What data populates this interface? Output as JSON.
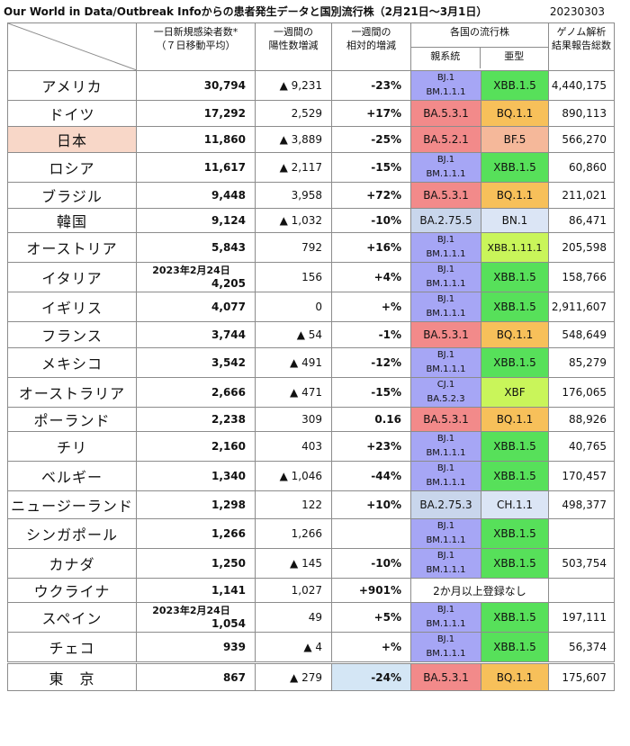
{
  "title": "Our World in Data/Outbreak Infoからの患者発生データと国別流行株（2月21日～3月1日）",
  "date_code": "20230303",
  "headers": {
    "new_cases": [
      "一日新規感染者数*",
      "（７日移動平均）"
    ],
    "weekly_change": [
      "一週間の",
      "陽性数増減"
    ],
    "relative_change": [
      "一週間の",
      "相対的増減"
    ],
    "strains": "各国の流行株",
    "parent_lineage": "親系統",
    "sub_type": "亜型",
    "genome": [
      "ゲノム解析",
      "結果報告総数"
    ]
  },
  "rows": [
    {
      "country": "アメリカ",
      "cases": "30,794",
      "change": "▲ 9,231",
      "rel": "-23%",
      "parent": [
        "BJ.1",
        "BM.1.1.1"
      ],
      "parent_color": "#a6a6f5",
      "sub": "XBB.1.5",
      "sub_color": "#57e05a",
      "genome": "4,440,175"
    },
    {
      "country": "ドイツ",
      "cases": "17,292",
      "change": "2,529",
      "rel": "+17%",
      "parent": [
        "BA.5.3.1"
      ],
      "parent_color": "#f28a8a",
      "sub": "BQ.1.1",
      "sub_color": "#f7c05a",
      "genome": "890,113"
    },
    {
      "country": "日本",
      "cases": "11,860",
      "change": "▲ 3,889",
      "rel": "-25%",
      "parent": [
        "BA.5.2.1"
      ],
      "parent_color": "#f28a8a",
      "sub": "BF.5",
      "sub_color": "#f5b89a",
      "genome": "566,270"
    },
    {
      "country": "ロシア",
      "cases": "11,617",
      "change": "▲ 2,117",
      "rel": "-15%",
      "parent": [
        "BJ.1",
        "BM.1.1.1"
      ],
      "parent_color": "#a6a6f5",
      "sub": "XBB.1.5",
      "sub_color": "#57e05a",
      "genome": "60,860"
    },
    {
      "country": "ブラジル",
      "cases": "9,448",
      "change": "3,958",
      "rel": "+72%",
      "parent": [
        "BA.5.3.1"
      ],
      "parent_color": "#f28a8a",
      "sub": "BQ.1.1",
      "sub_color": "#f7c05a",
      "genome": "211,021"
    },
    {
      "country": "韓国",
      "cases": "9,124",
      "change": "▲ 1,032",
      "rel": "-10%",
      "parent": [
        "BA.2.75.5"
      ],
      "parent_color": "#c9d6ec",
      "sub": "BN.1",
      "sub_color": "#dbe5f5",
      "genome": "86,471"
    },
    {
      "country": "オーストリア",
      "cases": "5,843",
      "change": "792",
      "rel": "+16%",
      "parent": [
        "BJ.1",
        "BM.1.1.1"
      ],
      "parent_color": "#a6a6f5",
      "sub": "XBB.1.11.1",
      "sub_color": "#c9f55a",
      "genome": "205,598"
    },
    {
      "country": "イタリア",
      "cases": "4,205",
      "cases_note": "2023年2月24日",
      "change": "156",
      "rel": "+4%",
      "parent": [
        "BJ.1",
        "BM.1.1.1"
      ],
      "parent_color": "#a6a6f5",
      "sub": "XBB.1.5",
      "sub_color": "#57e05a",
      "genome": "158,766"
    },
    {
      "country": "イギリス",
      "cases": "4,077",
      "change": "0",
      "rel": "+%",
      "parent": [
        "BJ.1",
        "BM.1.1.1"
      ],
      "parent_color": "#a6a6f5",
      "sub": "XBB.1.5",
      "sub_color": "#57e05a",
      "genome": "2,911,607"
    },
    {
      "country": "フランス",
      "cases": "3,744",
      "change": "▲ 54",
      "rel": "-1%",
      "parent": [
        "BA.5.3.1"
      ],
      "parent_color": "#f28a8a",
      "sub": "BQ.1.1",
      "sub_color": "#f7c05a",
      "genome": "548,649"
    },
    {
      "country": "メキシコ",
      "cases": "3,542",
      "change": "▲ 491",
      "rel": "-12%",
      "parent": [
        "BJ.1",
        "BM.1.1.1"
      ],
      "parent_color": "#a6a6f5",
      "sub": "XBB.1.5",
      "sub_color": "#57e05a",
      "genome": "85,279"
    },
    {
      "country": "オーストラリア",
      "cases": "2,666",
      "change": "▲ 471",
      "rel": "-15%",
      "parent": [
        "CJ.1",
        "BA.5.2.3"
      ],
      "parent_color": "#a6a6f5",
      "sub": "XBF",
      "sub_color": "#c9f55a",
      "genome": "176,065"
    },
    {
      "country": "ポーランド",
      "cases": "2,238",
      "change": "309",
      "rel": "0.16",
      "parent": [
        "BA.5.3.1"
      ],
      "parent_color": "#f28a8a",
      "sub": "BQ.1.1",
      "sub_color": "#f7c05a",
      "genome": "88,926"
    },
    {
      "country": "チリ",
      "cases": "2,160",
      "change": "403",
      "rel": "+23%",
      "parent": [
        "BJ.1",
        "BM.1.1.1"
      ],
      "parent_color": "#a6a6f5",
      "sub": "XBB.1.5",
      "sub_color": "#57e05a",
      "genome": "40,765"
    },
    {
      "country": "ベルギー",
      "cases": "1,340",
      "change": "▲ 1,046",
      "rel": "-44%",
      "parent": [
        "BJ.1",
        "BM.1.1.1"
      ],
      "parent_color": "#a6a6f5",
      "sub": "XBB.1.5",
      "sub_color": "#57e05a",
      "genome": "170,457"
    },
    {
      "country": "ニュージーランド",
      "cases": "1,298",
      "change": "122",
      "rel": "+10%",
      "parent": [
        "BA.2.75.3"
      ],
      "parent_color": "#c9d6ec",
      "sub": "CH.1.1",
      "sub_color": "#dbe5f5",
      "genome": "498,377"
    },
    {
      "country": "シンガポール",
      "cases": "1,266",
      "change": "1,266",
      "rel": "",
      "parent": [
        "BJ.1",
        "BM.1.1.1"
      ],
      "parent_color": "#a6a6f5",
      "sub": "XBB.1.5",
      "sub_color": "#57e05a",
      "genome": ""
    },
    {
      "country": "カナダ",
      "cases": "1,250",
      "change": "▲ 145",
      "rel": "-10%",
      "parent": [
        "BJ.1",
        "BM.1.1.1"
      ],
      "parent_color": "#a6a6f5",
      "sub": "XBB.1.5",
      "sub_color": "#57e05a",
      "genome": "503,754"
    },
    {
      "country": "ウクライナ",
      "cases": "1,141",
      "change": "1,027",
      "rel": "+901%",
      "no_data": "2か月以上登録なし",
      "genome": ""
    },
    {
      "country": "スペイン",
      "cases": "1,054",
      "cases_note": "2023年2月24日",
      "change": "49",
      "rel": "+5%",
      "parent": [
        "BJ.1",
        "BM.1.1.1"
      ],
      "parent_color": "#a6a6f5",
      "sub": "XBB.1.5",
      "sub_color": "#57e05a",
      "genome": "197,111"
    },
    {
      "country": "チェコ",
      "cases": "939",
      "change": "▲ 4",
      "rel": "+%",
      "parent": [
        "BJ.1",
        "BM.1.1.1"
      ],
      "parent_color": "#a6a6f5",
      "sub": "XBB.1.5",
      "sub_color": "#57e05a",
      "genome": "56,374"
    },
    {
      "country": "東　京",
      "cases": "867",
      "change": "▲ 279",
      "rel": "-24%",
      "parent": [
        "BA.5.3.1"
      ],
      "parent_color": "#f28a8a",
      "sub": "BQ.1.1",
      "sub_color": "#f7c05a",
      "genome": "175,607"
    }
  ]
}
